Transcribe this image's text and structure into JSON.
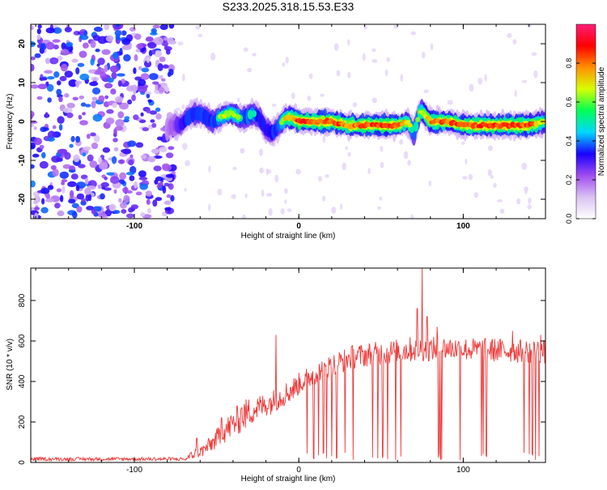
{
  "figure": {
    "title": "S233.2025.318.15.53.E33"
  },
  "chart_data": [
    {
      "type": "heatmap",
      "name": "spectrogram",
      "xlabel": "Height of straight line (km)",
      "ylabel": "Frequency (Hz)",
      "xlim": [
        -163,
        150
      ],
      "ylim": [
        -25,
        25
      ],
      "xticks": [
        -100,
        0,
        100
      ],
      "yticks": [
        -20,
        -10,
        0,
        10,
        20
      ],
      "noise_region": {
        "x": [
          -163,
          -80
        ],
        "amplitude": [
          0.1,
          0.4
        ]
      },
      "ridge": {
        "x": [
          -80,
          -76,
          -72,
          -68,
          -64,
          -60,
          -56,
          -52,
          -48,
          -44,
          -40,
          -36,
          -32,
          -28,
          -24,
          -20,
          -16,
          -12,
          -8,
          -4,
          0,
          10,
          20,
          30,
          40,
          50,
          60,
          66,
          70,
          74,
          80,
          90,
          100,
          110,
          120,
          130,
          140,
          150
        ],
        "freq": [
          -2,
          -1,
          -1,
          1,
          2,
          2,
          1,
          0,
          1,
          2,
          2,
          1,
          1,
          2,
          1,
          -2,
          -3,
          -1,
          1,
          1,
          0,
          0,
          0,
          -1,
          -1,
          -1,
          -1,
          0,
          -3,
          3,
          0,
          0,
          -1,
          -1,
          -1,
          -1,
          -1,
          0
        ],
        "amplitude": [
          0.2,
          0.3,
          0.45,
          0.55,
          0.6,
          0.6,
          0.55,
          0.6,
          0.65,
          0.7,
          0.7,
          0.65,
          0.6,
          0.65,
          0.55,
          0.5,
          0.55,
          0.6,
          0.75,
          0.85,
          0.95,
          0.9,
          0.92,
          0.85,
          0.9,
          0.9,
          0.88,
          0.75,
          0.6,
          0.7,
          0.85,
          0.88,
          0.9,
          0.9,
          0.9,
          0.92,
          0.9,
          0.7
        ]
      },
      "colorbar": {
        "label": "Normalized spectral amplitude",
        "range": [
          0,
          1
        ],
        "ticks": [
          0.0,
          0.2,
          0.4,
          0.6,
          0.8
        ],
        "tick_labels": [
          "0.0",
          "0.2",
          "0.4",
          "0.6",
          "0.8"
        ],
        "colors": [
          "#ffffff",
          "#d9c2f2",
          "#a04df0",
          "#1a00ff",
          "#00d8ff",
          "#00ff55",
          "#d8ff00",
          "#ff9000",
          "#ff0000",
          "#ff1e78"
        ]
      }
    },
    {
      "type": "line",
      "name": "snr",
      "xlabel": "Height of straight line (km)",
      "ylabel": "SNR (10 * v/v)",
      "xlim": [
        -163,
        150
      ],
      "ylim": [
        0,
        960
      ],
      "xticks": [
        -100,
        0,
        100
      ],
      "yticks": [
        0,
        200,
        400,
        600,
        800
      ],
      "color": "#ee3a3a",
      "envelope": {
        "x": [
          -163,
          -70,
          -64,
          -58,
          -52,
          -46,
          -40,
          -34,
          -28,
          -22,
          -16,
          -10,
          -4,
          2,
          8,
          14,
          20,
          26,
          32,
          40,
          50,
          60,
          70,
          80,
          90,
          100,
          110,
          120,
          130,
          140,
          150
        ],
        "mean": [
          10,
          12,
          40,
          60,
          100,
          150,
          190,
          230,
          260,
          280,
          300,
          330,
          360,
          400,
          430,
          460,
          480,
          500,
          520,
          530,
          540,
          550,
          560,
          560,
          565,
          560,
          555,
          555,
          550,
          550,
          545
        ],
        "noise": [
          10,
          10,
          25,
          35,
          45,
          60,
          70,
          80,
          70,
          60,
          60,
          60,
          60,
          55,
          55,
          55,
          55,
          60,
          60,
          60,
          60,
          60,
          65,
          60,
          60,
          60,
          60,
          60,
          60,
          60,
          60
        ]
      },
      "spikes": [
        {
          "x": -62,
          "y": 120
        },
        {
          "x": -47,
          "y": 220
        },
        {
          "x": -35,
          "y": 270
        },
        {
          "x": -14,
          "y": 630
        },
        {
          "x": 26,
          "y": 520
        },
        {
          "x": 72,
          "y": 760
        },
        {
          "x": 75,
          "y": 960
        },
        {
          "x": 78,
          "y": 720
        },
        {
          "x": 84,
          "y": 670
        },
        {
          "x": 130,
          "y": 650
        },
        {
          "x": 147,
          "y": 630
        }
      ],
      "dropouts": [
        5,
        9,
        12,
        15,
        17,
        20,
        23,
        28,
        33,
        45,
        48,
        51,
        54,
        59,
        62,
        85,
        86,
        87,
        98,
        111,
        112,
        114,
        137,
        140,
        142,
        144,
        146
      ]
    }
  ]
}
